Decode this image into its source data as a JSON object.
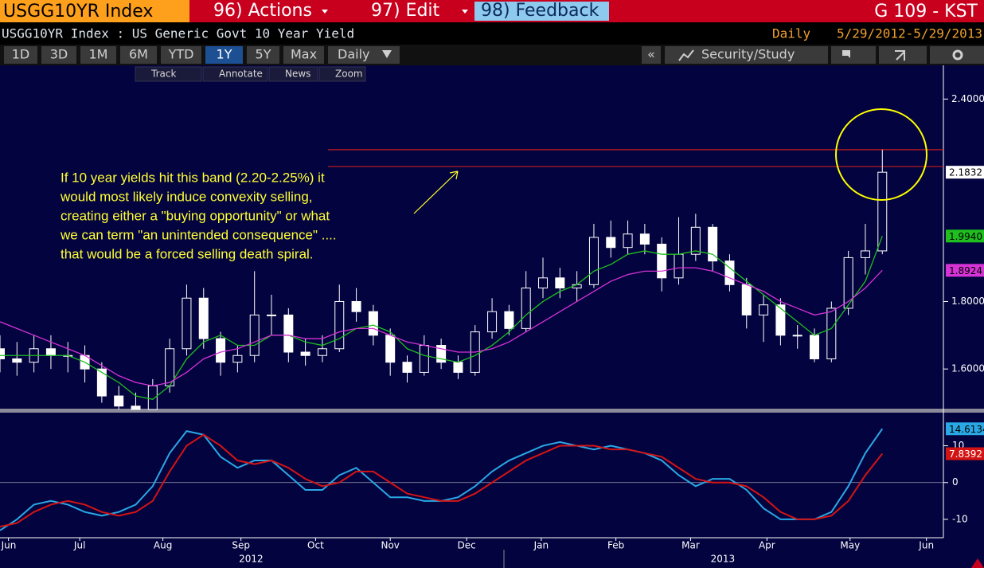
{
  "header": {
    "ticker": "USGG10YR Index",
    "menu": [
      "96) Actions",
      "97) Edit",
      "98) Feedback"
    ],
    "screen": "G 109 - KST",
    "description": "USGG10YR Index : US Generic Govt 10 Year Yield",
    "frequency": "Daily",
    "range": "5/29/2012-5/29/2013",
    "periods": [
      "1D",
      "3D",
      "1M",
      "6M",
      "YTD",
      "1Y",
      "5Y",
      "Max",
      "Daily"
    ],
    "active_period": "1Y",
    "collapse": "«",
    "study": "Security/Study",
    "tools": [
      "Track",
      "Annotate",
      "News",
      "Zoom"
    ]
  },
  "chart_data": [
    {
      "type": "candlestick",
      "categories": [
        null,
        null,
        null,
        null,
        null,
        null,
        null,
        null,
        null,
        null,
        null,
        null,
        null,
        null,
        null,
        null,
        null,
        null,
        null,
        null,
        null,
        null,
        null,
        null,
        null,
        null,
        null,
        null,
        null,
        null,
        null,
        null,
        null,
        null,
        null,
        null,
        null,
        null,
        null,
        null,
        null,
        null,
        null,
        null,
        null,
        null,
        null,
        null,
        null,
        null,
        null,
        null,
        null
      ],
      "open": [
        1.66,
        1.63,
        1.62,
        1.66,
        1.64,
        1.64,
        1.6,
        1.52,
        1.49,
        1.48,
        1.55,
        1.66,
        1.81,
        1.69,
        1.62,
        1.64,
        1.76,
        1.76,
        1.65,
        1.64,
        1.66,
        1.8,
        1.77,
        1.7,
        1.62,
        1.59,
        1.67,
        1.62,
        1.59,
        1.71,
        1.77,
        1.72,
        1.84,
        1.87,
        1.84,
        1.85,
        1.99,
        1.96,
        2.0,
        1.97,
        1.87,
        1.94,
        2.02,
        1.92,
        1.85,
        1.76,
        1.79,
        1.7,
        1.7,
        1.63,
        1.78,
        1.93,
        1.95
      ],
      "high": [
        1.7,
        1.68,
        1.7,
        1.7,
        1.68,
        1.67,
        1.62,
        1.55,
        1.53,
        1.57,
        1.69,
        1.85,
        1.84,
        1.71,
        1.67,
        1.89,
        1.82,
        1.78,
        1.69,
        1.7,
        1.85,
        1.84,
        1.79,
        1.72,
        1.64,
        1.7,
        1.69,
        1.64,
        1.73,
        1.81,
        1.79,
        1.89,
        1.93,
        1.9,
        1.89,
        2.03,
        2.04,
        2.04,
        2.03,
        1.99,
        2.05,
        2.06,
        2.03,
        1.94,
        1.87,
        1.82,
        1.81,
        1.73,
        1.72,
        1.8,
        1.95,
        2.03,
        2.25
      ],
      "low": [
        1.59,
        1.58,
        1.59,
        1.6,
        1.59,
        1.56,
        1.5,
        1.48,
        1.48,
        1.48,
        1.53,
        1.64,
        1.66,
        1.58,
        1.59,
        1.62,
        1.7,
        1.62,
        1.61,
        1.62,
        1.65,
        1.74,
        1.67,
        1.58,
        1.56,
        1.58,
        1.6,
        1.57,
        1.58,
        1.69,
        1.7,
        1.71,
        1.81,
        1.81,
        1.8,
        1.84,
        1.93,
        1.94,
        1.94,
        1.83,
        1.85,
        1.92,
        1.89,
        1.83,
        1.72,
        1.68,
        1.67,
        1.66,
        1.62,
        1.62,
        1.76,
        1.88,
        1.94
      ],
      "close": [
        1.63,
        1.62,
        1.66,
        1.64,
        1.64,
        1.6,
        1.52,
        1.49,
        1.48,
        1.55,
        1.66,
        1.81,
        1.69,
        1.62,
        1.64,
        1.76,
        1.76,
        1.65,
        1.64,
        1.66,
        1.8,
        1.77,
        1.7,
        1.62,
        1.59,
        1.67,
        1.62,
        1.59,
        1.71,
        1.77,
        1.72,
        1.84,
        1.87,
        1.84,
        1.85,
        1.99,
        1.96,
        2.0,
        1.97,
        1.87,
        1.94,
        2.02,
        1.92,
        1.85,
        1.76,
        1.79,
        1.7,
        1.7,
        1.63,
        1.78,
        1.93,
        1.95,
        2.1832
      ],
      "color": "#ffffff",
      "lines": [
        {
          "color": "#1fbf1f",
          "values": [
            1.64,
            1.64,
            1.64,
            1.64,
            1.64,
            1.62,
            1.59,
            1.56,
            1.52,
            1.51,
            1.55,
            1.63,
            1.68,
            1.7,
            1.67,
            1.67,
            1.7,
            1.7,
            1.68,
            1.67,
            1.69,
            1.72,
            1.73,
            1.71,
            1.66,
            1.64,
            1.63,
            1.62,
            1.64,
            1.67,
            1.71,
            1.76,
            1.8,
            1.83,
            1.85,
            1.89,
            1.91,
            1.94,
            1.95,
            1.94,
            1.94,
            1.95,
            1.94,
            1.9,
            1.86,
            1.82,
            1.78,
            1.74,
            1.7,
            1.72,
            1.79,
            1.86,
            1.994
          ],
          "last_label": "1.9940"
        },
        {
          "color": "#d633d6",
          "values": [
            1.74,
            1.72,
            1.7,
            1.68,
            1.66,
            1.64,
            1.61,
            1.58,
            1.56,
            1.55,
            1.56,
            1.59,
            1.63,
            1.65,
            1.66,
            1.68,
            1.7,
            1.7,
            1.69,
            1.69,
            1.71,
            1.72,
            1.72,
            1.7,
            1.68,
            1.67,
            1.66,
            1.65,
            1.65,
            1.66,
            1.68,
            1.71,
            1.74,
            1.77,
            1.8,
            1.83,
            1.86,
            1.88,
            1.89,
            1.89,
            1.9,
            1.9,
            1.89,
            1.87,
            1.85,
            1.83,
            1.8,
            1.78,
            1.76,
            1.77,
            1.8,
            1.84,
            1.8924
          ]
        }
      ],
      "band": [
        2.2,
        2.25
      ],
      "band_color": "#c41e1e",
      "annotation": [
        "If 10 year yields hit this band (2.20-2.25%) it",
        "would most likely induce convexity selling,",
        "creating either a \"buying opportunity\" or what",
        "we can term \"an unintended consequence\" ....",
        "that would be a forced selling death spiral."
      ],
      "xlim": [
        0,
        55.6
      ],
      "ylim": [
        1.48,
        2.5
      ],
      "yticks": [
        {
          "value": 2.4,
          "label": "2.4000"
        },
        {
          "value": 1.8,
          "label": "1.8000"
        },
        {
          "value": 1.6,
          "label": "1.6000"
        }
      ]
    },
    {
      "type": "line",
      "categories": [
        null,
        null,
        null,
        null,
        null,
        null,
        null,
        null,
        null,
        null,
        null,
        null,
        null,
        null,
        null,
        null,
        null,
        null,
        null,
        null,
        null,
        null,
        null,
        null,
        null,
        null,
        null,
        null,
        null,
        null,
        null,
        null,
        null,
        null,
        null,
        null,
        null,
        null,
        null,
        null,
        null,
        null,
        null,
        null,
        null,
        null,
        null,
        null,
        null,
        null,
        null,
        null,
        null
      ],
      "series": [
        {
          "color": "#2aa8e6",
          "values": [
            -13,
            -10,
            -6,
            -5,
            -6,
            -8,
            -9,
            -8,
            -6,
            -1,
            8,
            14,
            13,
            7,
            4,
            6,
            6,
            2,
            -2,
            -2,
            2,
            4,
            0,
            -4,
            -4,
            -5,
            -5,
            -4,
            -1,
            3,
            6,
            8,
            10,
            11,
            10,
            9,
            10,
            9,
            8,
            6,
            2,
            -1,
            1,
            1,
            -2,
            -7,
            -10,
            -10,
            -10,
            -8,
            -1,
            8,
            14.6134
          ]
        },
        {
          "color": "#d41414",
          "values": [
            -12,
            -11,
            -8,
            -6,
            -5,
            -6,
            -8,
            -9,
            -8,
            -5,
            3,
            10,
            13,
            10,
            6,
            5,
            6,
            4,
            1,
            -1,
            0,
            3,
            3,
            0,
            -3,
            -4,
            -5,
            -5,
            -3,
            0,
            3,
            6,
            8,
            10,
            10,
            10,
            9,
            9,
            8,
            7,
            4,
            1,
            0,
            0,
            -1,
            -4,
            -8,
            -10,
            -10,
            -9,
            -5,
            2,
            7.8392
          ]
        }
      ],
      "xlim": [
        0,
        55.6
      ],
      "ylim": [
        -15,
        19
      ],
      "yticks": [
        10,
        0,
        -10
      ],
      "xticks": [
        {
          "value": 0.5,
          "label": "Jun"
        },
        {
          "value": 4.7,
          "label": "Jul"
        },
        {
          "value": 9.6,
          "label": "Aug"
        },
        {
          "value": 14.2,
          "label": "Sep"
        },
        {
          "value": 18.6,
          "label": "Oct"
        },
        {
          "value": 23,
          "label": "Nov"
        },
        {
          "value": 27.5,
          "label": "Dec"
        },
        {
          "value": 31.9,
          "label": "Jan"
        },
        {
          "value": 36.3,
          "label": "Feb"
        },
        {
          "value": 40.7,
          "label": "Mar"
        },
        {
          "value": 45.2,
          "label": "Apr"
        },
        {
          "value": 50.1,
          "label": "May"
        },
        {
          "value": 54.6,
          "label": "Jun"
        }
      ],
      "year_labels": [
        {
          "value": 14.8,
          "label": "2012"
        },
        {
          "value": 42.6,
          "label": "2013"
        }
      ]
    }
  ]
}
